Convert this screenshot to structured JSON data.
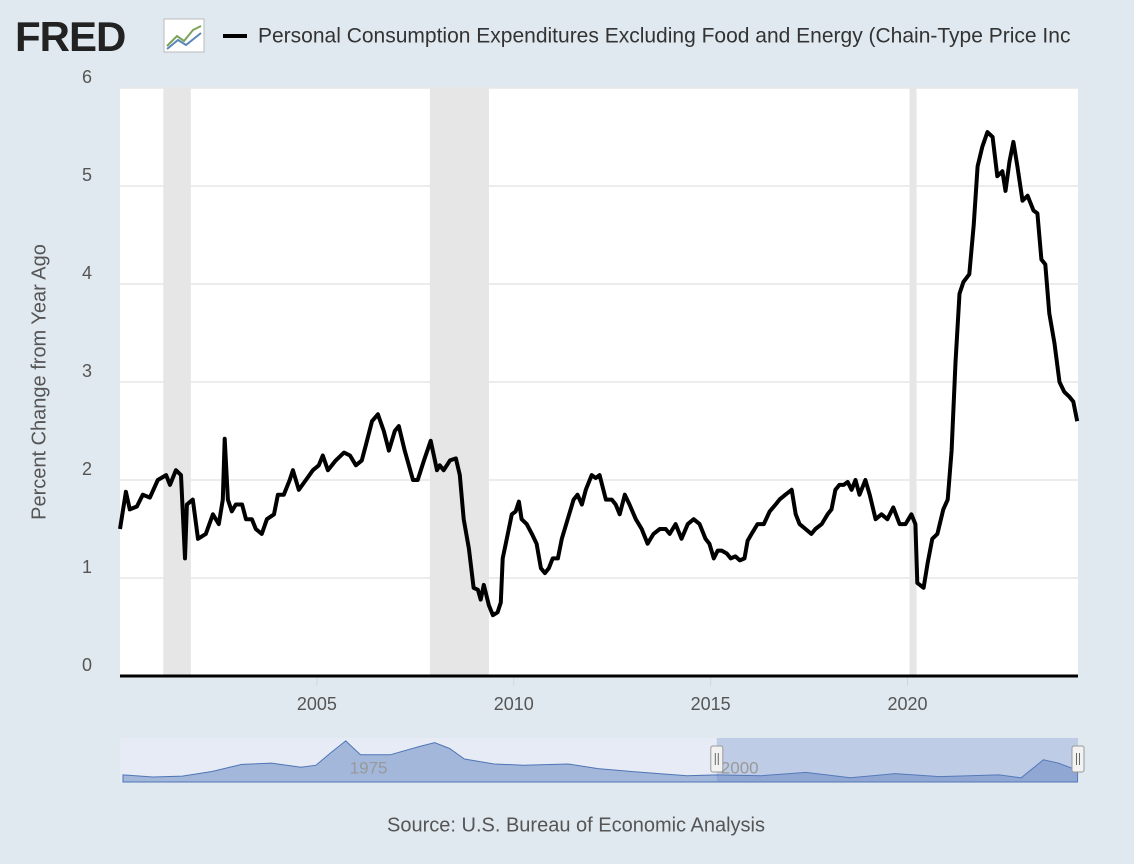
{
  "logo": "FRED",
  "source": "Source: U.S. Bureau of Economic Analysis",
  "chart_data": {
    "type": "line",
    "ylabel": "Percent Change from Year Ago",
    "xlim": [
      2000,
      2024.33
    ],
    "xticks": [
      2005,
      2010,
      2015,
      2020
    ],
    "ylim": [
      0,
      6
    ],
    "yticks": [
      0,
      1,
      2,
      3,
      4,
      5,
      6
    ],
    "grid": true,
    "recessions": [
      [
        2001.1,
        2001.8
      ],
      [
        2007.87,
        2009.37
      ],
      [
        2020.05,
        2020.23
      ]
    ],
    "recession_color": "#e6e6e6",
    "x": [
      2000.0,
      2000.15,
      2000.25,
      2000.43,
      2000.58,
      2000.76,
      2000.96,
      2001.17,
      2001.27,
      2001.42,
      2001.55,
      2001.65,
      2001.7,
      2001.85,
      2001.98,
      2002.18,
      2002.36,
      2002.51,
      2002.61,
      2002.66,
      2002.74,
      2002.84,
      2002.94,
      2003.1,
      2003.2,
      2003.35,
      2003.45,
      2003.6,
      2003.73,
      2003.91,
      2004.01,
      2004.16,
      2004.31,
      2004.39,
      2004.54,
      2004.72,
      2004.9,
      2005.05,
      2005.15,
      2005.28,
      2005.48,
      2005.69,
      2005.84,
      2005.99,
      2006.14,
      2006.24,
      2006.4,
      2006.55,
      2006.7,
      2006.83,
      2006.98,
      2007.08,
      2007.23,
      2007.44,
      2007.56,
      2007.72,
      2007.89,
      2008.05,
      2008.12,
      2008.22,
      2008.38,
      2008.53,
      2008.63,
      2008.73,
      2008.86,
      2008.98,
      2009.09,
      2009.16,
      2009.24,
      2009.37,
      2009.47,
      2009.59,
      2009.67,
      2009.72,
      2009.85,
      2009.95,
      2010.05,
      2010.13,
      2010.2,
      2010.33,
      2010.46,
      2010.58,
      2010.69,
      2010.79,
      2010.89,
      2010.99,
      2011.12,
      2011.22,
      2011.37,
      2011.52,
      2011.62,
      2011.73,
      2011.83,
      2011.98,
      2012.08,
      2012.18,
      2012.34,
      2012.49,
      2012.59,
      2012.69,
      2012.82,
      2012.94,
      2013.1,
      2013.25,
      2013.4,
      2013.55,
      2013.71,
      2013.86,
      2013.96,
      2014.11,
      2014.26,
      2014.42,
      2014.57,
      2014.72,
      2014.87,
      2014.97,
      2015.08,
      2015.18,
      2015.28,
      2015.41,
      2015.51,
      2015.63,
      2015.74,
      2015.86,
      2015.94,
      2016.04,
      2016.19,
      2016.35,
      2016.5,
      2016.65,
      2016.75,
      2016.9,
      2017.06,
      2017.16,
      2017.26,
      2017.41,
      2017.56,
      2017.66,
      2017.82,
      2017.97,
      2018.07,
      2018.17,
      2018.27,
      2018.38,
      2018.48,
      2018.58,
      2018.68,
      2018.78,
      2018.93,
      2019.04,
      2019.19,
      2019.34,
      2019.49,
      2019.64,
      2019.8,
      2019.95,
      2020.1,
      2020.2,
      2020.25,
      2020.41,
      2020.51,
      2020.63,
      2020.76,
      2020.91,
      2021.02,
      2021.12,
      2021.22,
      2021.32,
      2021.42,
      2021.57,
      2021.68,
      2021.78,
      2021.9,
      2022.03,
      2022.16,
      2022.28,
      2022.41,
      2022.49,
      2022.59,
      2022.69,
      2022.79,
      2022.92,
      2023.05,
      2023.2,
      2023.3,
      2023.4,
      2023.5,
      2023.6,
      2023.73,
      2023.86,
      2023.98,
      2024.11,
      2024.21,
      2024.31
    ],
    "series": [
      {
        "name": "Personal Consumption Expenditures Excluding Food and Energy (Chain-Type Price Inc",
        "color": "#000000",
        "values": [
          1.5,
          1.88,
          1.7,
          1.73,
          1.85,
          1.82,
          2.0,
          2.05,
          1.95,
          2.1,
          2.05,
          1.2,
          1.75,
          1.8,
          1.4,
          1.45,
          1.65,
          1.55,
          1.8,
          2.42,
          1.8,
          1.68,
          1.75,
          1.75,
          1.6,
          1.6,
          1.5,
          1.45,
          1.6,
          1.65,
          1.85,
          1.85,
          2.0,
          2.1,
          1.9,
          2.0,
          2.1,
          2.15,
          2.25,
          2.1,
          2.2,
          2.28,
          2.25,
          2.15,
          2.2,
          2.35,
          2.6,
          2.67,
          2.5,
          2.3,
          2.5,
          2.55,
          2.3,
          2.0,
          2.0,
          2.2,
          2.4,
          2.1,
          2.15,
          2.1,
          2.2,
          2.22,
          2.05,
          1.6,
          1.3,
          0.9,
          0.88,
          0.78,
          0.93,
          0.72,
          0.62,
          0.65,
          0.75,
          1.2,
          1.45,
          1.65,
          1.68,
          1.78,
          1.6,
          1.55,
          1.45,
          1.35,
          1.1,
          1.05,
          1.1,
          1.2,
          1.2,
          1.4,
          1.6,
          1.8,
          1.85,
          1.75,
          1.9,
          2.05,
          2.02,
          2.05,
          1.8,
          1.8,
          1.75,
          1.65,
          1.85,
          1.75,
          1.6,
          1.5,
          1.35,
          1.45,
          1.5,
          1.5,
          1.45,
          1.55,
          1.4,
          1.55,
          1.6,
          1.55,
          1.4,
          1.35,
          1.2,
          1.28,
          1.28,
          1.25,
          1.2,
          1.22,
          1.18,
          1.2,
          1.38,
          1.45,
          1.55,
          1.55,
          1.68,
          1.75,
          1.8,
          1.85,
          1.9,
          1.65,
          1.55,
          1.5,
          1.45,
          1.5,
          1.55,
          1.65,
          1.7,
          1.9,
          1.95,
          1.95,
          1.98,
          1.9,
          2.0,
          1.85,
          2.0,
          1.85,
          1.6,
          1.65,
          1.6,
          1.72,
          1.55,
          1.55,
          1.65,
          1.55,
          0.95,
          0.9,
          1.15,
          1.4,
          1.45,
          1.7,
          1.8,
          2.3,
          3.2,
          3.9,
          4.02,
          4.1,
          4.6,
          5.2,
          5.4,
          5.55,
          5.5,
          5.1,
          5.15,
          4.95,
          5.25,
          5.45,
          5.2,
          4.85,
          4.9,
          4.75,
          4.72,
          4.25,
          4.2,
          3.7,
          3.4,
          3.0,
          2.9,
          2.85,
          2.8,
          2.6
        ]
      }
    ],
    "navigator": {
      "xlim": [
        1959.8,
        2024.33
      ],
      "ylim": [
        0,
        10.5
      ],
      "xticks": [
        1975,
        2000
      ],
      "color": "#6b8cc4",
      "x": [
        1960,
        1962,
        1964,
        1966,
        1968,
        1970,
        1972,
        1973,
        1974,
        1975,
        1976,
        1978,
        1980,
        1981,
        1982,
        1983,
        1985,
        1987,
        1990,
        1992,
        1995,
        1998,
        2000,
        2003,
        2006,
        2009,
        2012,
        2015,
        2019,
        2020.5,
        2022,
        2023,
        2024.3
      ],
      "values": [
        1.7,
        1.2,
        1.4,
        2.5,
        4.2,
        4.5,
        3.5,
        4,
        7,
        9.8,
        6.5,
        6.5,
        8.5,
        9.4,
        8,
        5.5,
        4.3,
        4,
        4.3,
        3.2,
        2.3,
        1.5,
        1.7,
        1.5,
        2.3,
        1,
        2,
        1.3,
        1.7,
        1,
        5.3,
        4.5,
        2.8
      ]
    }
  }
}
